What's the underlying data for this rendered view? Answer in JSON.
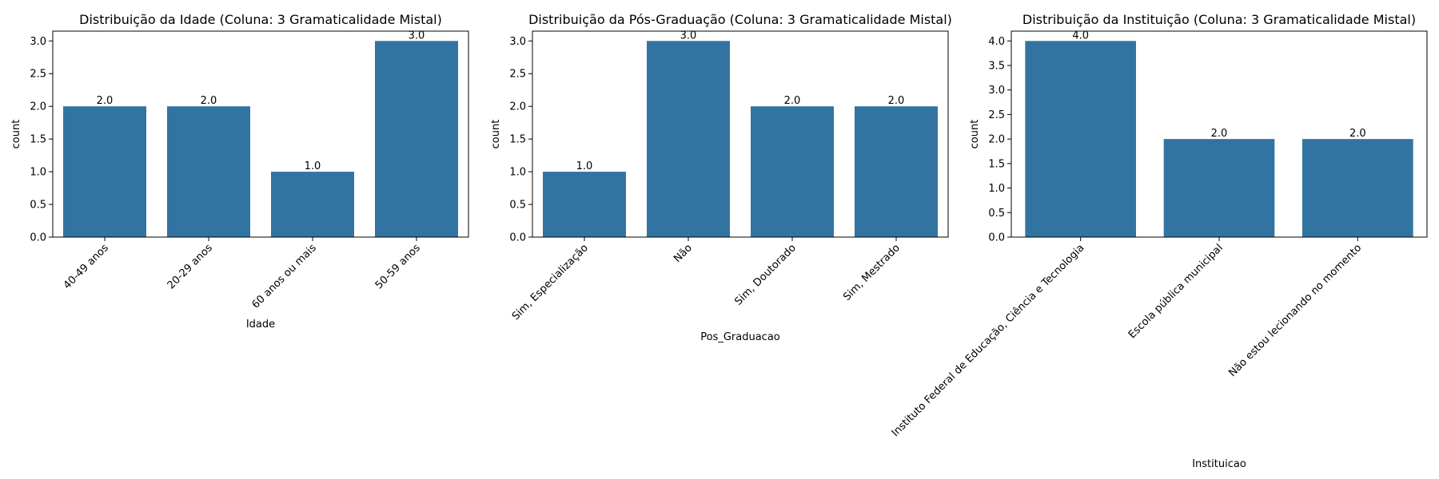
{
  "chart_data": [
    {
      "type": "bar",
      "title": "Distribuição da Idade (Coluna: 3 Gramaticalidade Mistal)",
      "xlabel": "Idade",
      "ylabel": "count",
      "categories": [
        "40-49 anos",
        "20-29 anos",
        "60 anos ou mais",
        "50-59 anos"
      ],
      "values": [
        2.0,
        2.0,
        1.0,
        3.0
      ],
      "data_labels": [
        "2.0",
        "2.0",
        "1.0",
        "3.0"
      ],
      "ylim": [
        0,
        3.15
      ],
      "yticks": [
        "0.0",
        "0.5",
        "1.0",
        "1.5",
        "2.0",
        "2.5",
        "3.0"
      ],
      "ytick_values": [
        0,
        0.5,
        1.0,
        1.5,
        2.0,
        2.5,
        3.0
      ],
      "grid": false,
      "color": "#3274a1"
    },
    {
      "type": "bar",
      "title": "Distribuição da Pós-Graduação (Coluna: 3 Gramaticalidade Mistal)",
      "xlabel": "Pos_Graduacao",
      "ylabel": "count",
      "categories": [
        "Sim, Especialização",
        "Não",
        "Sim, Doutorado",
        "Sim, Mestrado"
      ],
      "values": [
        1.0,
        3.0,
        2.0,
        2.0
      ],
      "data_labels": [
        "1.0",
        "3.0",
        "2.0",
        "2.0"
      ],
      "ylim": [
        0,
        3.15
      ],
      "yticks": [
        "0.0",
        "0.5",
        "1.0",
        "1.5",
        "2.0",
        "2.5",
        "3.0"
      ],
      "ytick_values": [
        0,
        0.5,
        1.0,
        1.5,
        2.0,
        2.5,
        3.0
      ],
      "grid": false,
      "color": "#3274a1"
    },
    {
      "type": "bar",
      "title": "Distribuição da Instituição (Coluna: 3 Gramaticalidade Mistal)",
      "xlabel": "Instituicao",
      "ylabel": "count",
      "categories": [
        "Instituto Federal de Educação, Ciência e Tecnologia",
        "Escola pública municipal",
        "Não estou lecionando no momento"
      ],
      "values": [
        4.0,
        2.0,
        2.0
      ],
      "data_labels": [
        "4.0",
        "2.0",
        "2.0"
      ],
      "ylim": [
        0,
        4.2
      ],
      "yticks": [
        "0.0",
        "0.5",
        "1.0",
        "1.5",
        "2.0",
        "2.5",
        "3.0",
        "3.5",
        "4.0"
      ],
      "ytick_values": [
        0,
        0.5,
        1.0,
        1.5,
        2.0,
        2.5,
        3.0,
        3.5,
        4.0
      ],
      "grid": false,
      "color": "#3274a1"
    }
  ]
}
